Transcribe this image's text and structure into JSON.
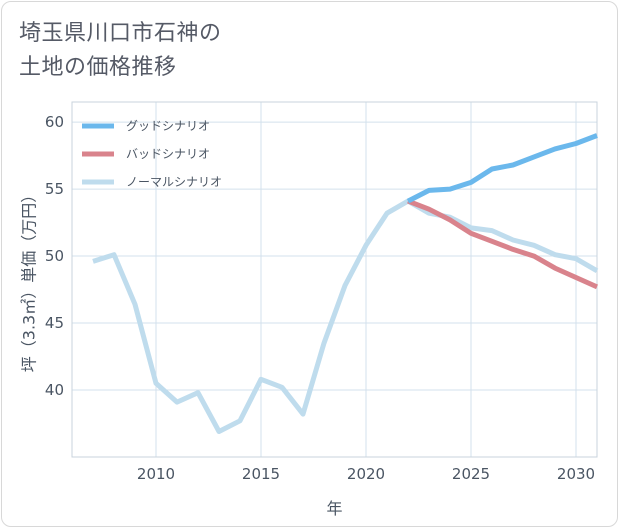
{
  "title_lines": [
    "埼玉県川口市石神の",
    "土地の価格推移"
  ],
  "chart_data": {
    "type": "line",
    "xlabel": "年",
    "ylabel": "坪（3.3㎡）単価（万円）",
    "xlim": [
      2006,
      2031
    ],
    "ylim": [
      35,
      61.5
    ],
    "x_ticks": [
      2010,
      2015,
      2020,
      2025,
      2030
    ],
    "y_ticks": [
      40,
      45,
      50,
      55,
      60
    ],
    "grid": true,
    "legend_position": "top-left",
    "series": [
      {
        "name": "グッドシナリオ",
        "color": "#6bb8ec",
        "x": [
          2022,
          2023,
          2024,
          2025,
          2026,
          2027,
          2028,
          2029,
          2030,
          2031
        ],
        "y": [
          54.1,
          54.9,
          55.0,
          55.5,
          56.5,
          56.8,
          57.4,
          58.0,
          58.4,
          59.0
        ]
      },
      {
        "name": "バッドシナリオ",
        "color": "#d9838c",
        "x": [
          2022,
          2023,
          2024,
          2025,
          2026,
          2027,
          2028,
          2029,
          2030,
          2031
        ],
        "y": [
          54.1,
          53.5,
          52.7,
          51.7,
          51.1,
          50.5,
          50.0,
          49.1,
          48.4,
          47.7
        ]
      },
      {
        "name": "ノーマルシナリオ",
        "color": "#bfdced",
        "x": [
          2007,
          2008,
          2009,
          2010,
          2011,
          2012,
          2013,
          2014,
          2015,
          2016,
          2017,
          2018,
          2019,
          2020,
          2021,
          2022,
          2023,
          2024,
          2025,
          2026,
          2027,
          2028,
          2029,
          2030,
          2031
        ],
        "y": [
          49.6,
          50.1,
          46.4,
          40.5,
          39.1,
          39.8,
          36.9,
          37.7,
          40.8,
          40.2,
          38.2,
          43.5,
          47.8,
          50.8,
          53.2,
          54.1,
          53.2,
          52.9,
          52.1,
          51.9,
          51.2,
          50.8,
          50.1,
          49.8,
          48.9
        ]
      }
    ]
  }
}
